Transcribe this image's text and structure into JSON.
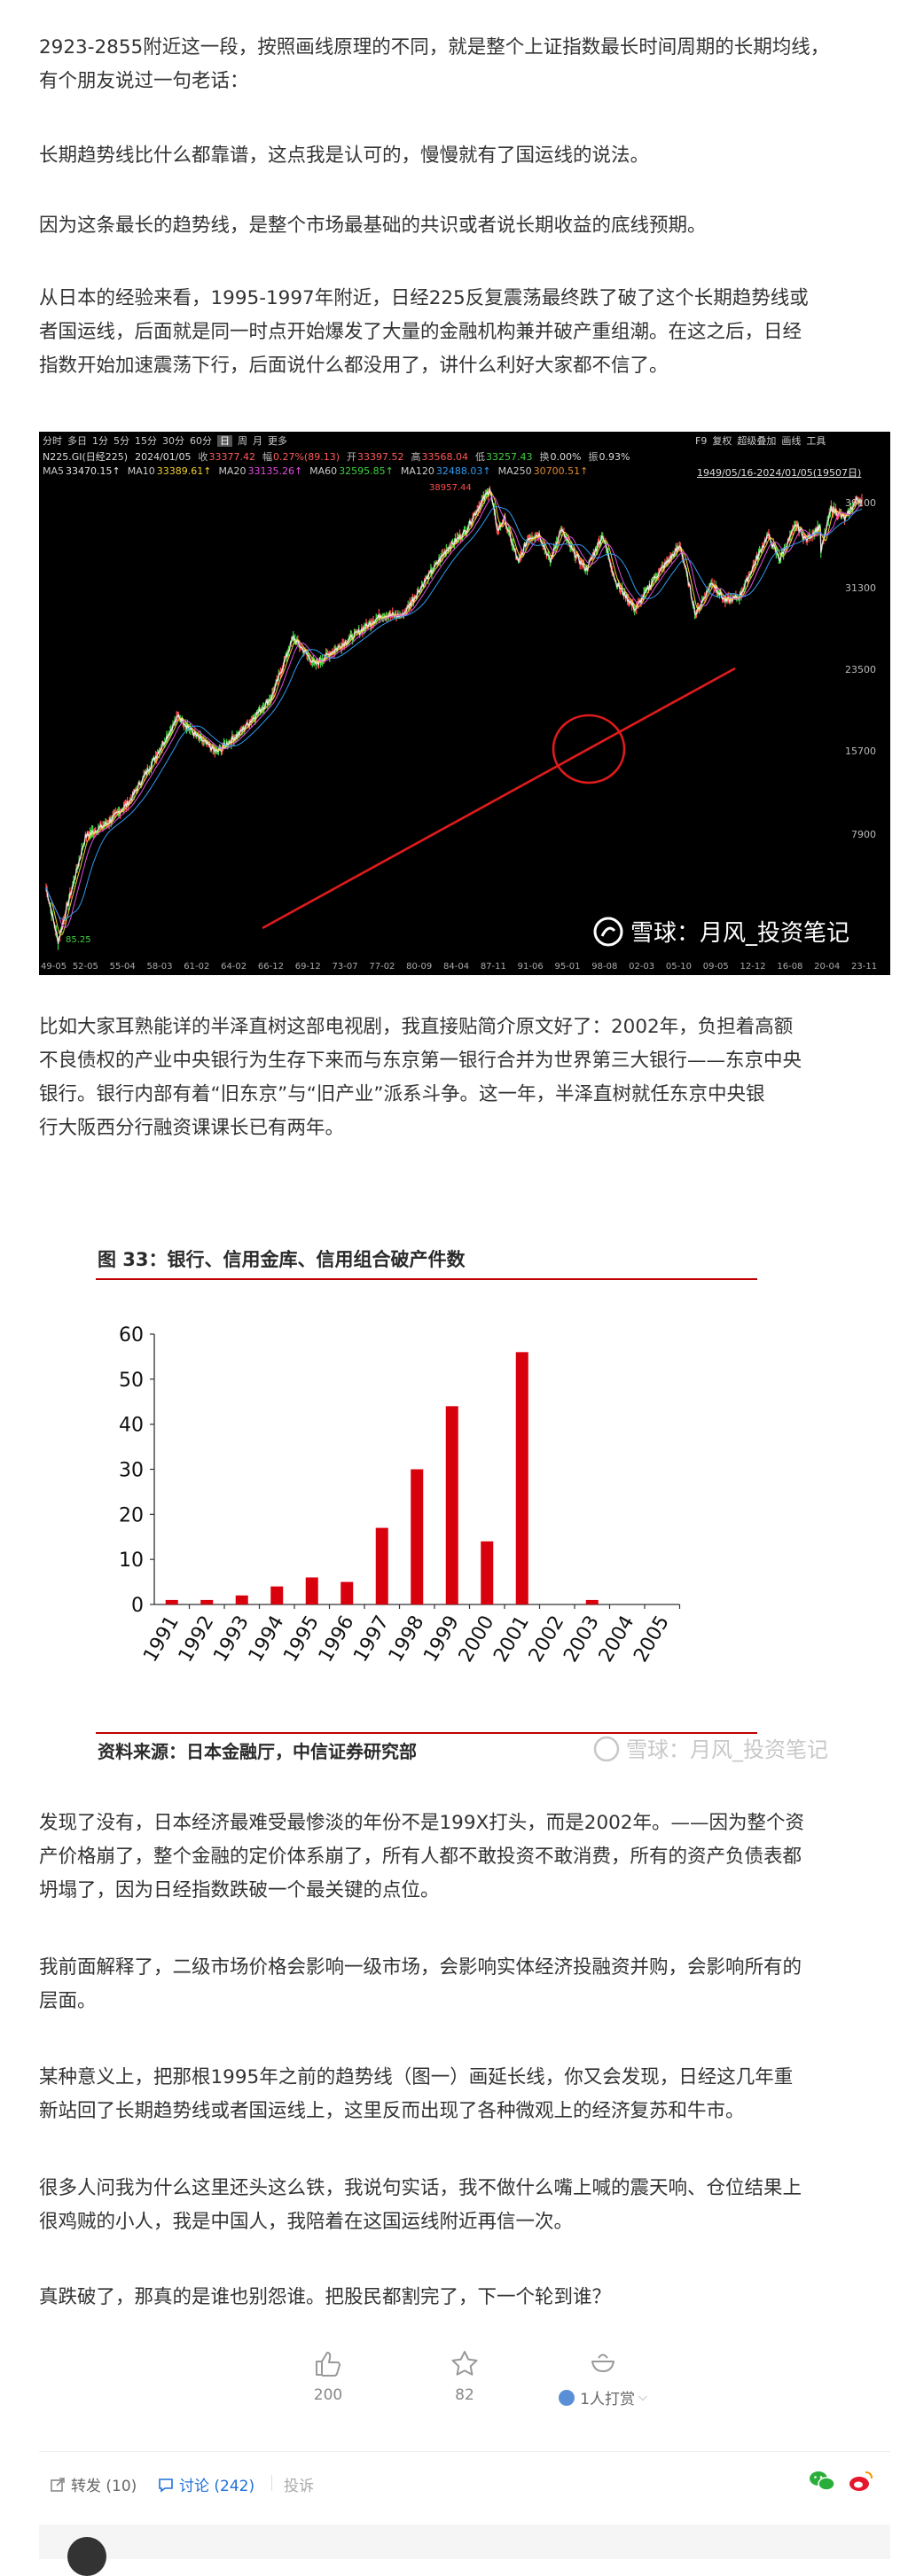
{
  "paragraphs": [
    {
      "lines": [
        "2923-2855附近这一段，按照画线原理的不同，就是整个上证指数最长时间周期的长期均线，",
        "有个朋友说过一句老话："
      ]
    },
    {
      "lines": [
        "长期趋势线比什么都靠谱，这点我是认可的，慢慢就有了国运线的说法。"
      ]
    },
    {
      "lines": [
        "因为这条最长的趋势线，是整个市场最基础的共识或者说长期收益的底线预期。"
      ]
    },
    {
      "lines": [
        "从日本的经验来看，1995-1997年附近，日经225反复震荡最终跌了破了这个长期趋势线或",
        "者国运线，后面就是同一时点开始爆发了大量的金融机构兼并破产重组潮。在这之后，日经",
        "指数开始加速震荡下行，后面说什么都没用了，讲什么利好大家都不信了。"
      ]
    },
    {
      "lines": [
        "比如大家耳熟能详的半泽直树这部电视剧，我直接贴简介原文好了：2002年，负担着高额",
        "不良债权的产业中央银行为生存下来而与东京第一银行合并为世界第三大银行——东京中央",
        "银行。银行内部有着“旧东京”与“旧产业”派系斗争。这一年，半泽直树就任东京中央银",
        "行大阪西分行融资课课长已有两年。"
      ]
    },
    {
      "lines": [
        "发现了没有，日本经济最难受最惨淡的年份不是199X打头，而是2002年。——因为整个资",
        "产价格崩了，整个金融的定价体系崩了，所有人都不敢投资不敢消费，所有的资产负债表都",
        "坍塌了，因为日经指数跌破一个最关键的点位。"
      ]
    },
    {
      "lines": [
        "我前面解释了，二级市场价格会影响一级市场，会影响实体经济投融资并购，会影响所有的",
        "层面。"
      ]
    },
    {
      "lines": [
        "某种意义上，把那根1995年之前的趋势线（图一）画延长线，你又会发现，日经这几年重",
        "新站回了长期趋势线或者国运线上，这里反而出现了各种微观上的经济复苏和牛市。"
      ]
    },
    {
      "lines": [
        "很多人问我为什么这里还头这么铁，我说句实话，我不做什么嘴上喊的震天响、仓位结果上",
        "很鸡贼的小人，我是中国人，我陪着在这国运线附近再信一次。"
      ]
    },
    {
      "lines": [
        "真跌破了，那真的是谁也别怨谁。把股民都割完了，下一个轮到谁？"
      ]
    }
  ],
  "stock_chart": {
    "tabs": [
      "分时",
      "多日",
      "1分",
      "5分",
      "15分",
      "30分",
      "60分",
      "日",
      "周",
      "月",
      "更多"
    ],
    "selected_tab": "日",
    "right_tools": [
      "F9",
      "复权",
      "超级叠加",
      "画线",
      "工具"
    ],
    "info_row": {
      "symbol": "N225.GI(日经225)",
      "date": "2024/01/05",
      "close_label": "收",
      "close": "33377.42",
      "change_label": "幅",
      "change": "0.27%(89.13)",
      "open_label": "开",
      "open": "33397.52",
      "high_label": "高",
      "high": "33568.04",
      "low_label": "低",
      "low": "33257.43",
      "turnover_label": "换",
      "turnover": "0.00%",
      "amplitude_label": "振",
      "amplitude": "0.93%"
    },
    "ma_row": [
      {
        "label": "MA5",
        "value": "33470.15↑",
        "color": "#e6e6e6"
      },
      {
        "label": "MA10",
        "value": "33389.61↑",
        "color": "#f2d22b"
      },
      {
        "label": "MA20",
        "value": "33135.26↑",
        "color": "#e04ce0"
      },
      {
        "label": "MA60",
        "value": "32595.85↑",
        "color": "#3fd13f"
      },
      {
        "label": "MA120",
        "value": "32488.03↑",
        "color": "#2f9bf2"
      },
      {
        "label": "MA250",
        "value": "30700.51↑",
        "color": "#e08a30"
      }
    ],
    "range_label": "1949/05/16-2024/01/05(19507日)",
    "y_ticks": [
      "39100",
      "31300",
      "23500",
      "15700",
      "7900"
    ],
    "x_ticks": [
      "49-05",
      "52-05",
      "55-04",
      "58-03",
      "61-02",
      "64-02",
      "66-12",
      "69-12",
      "73-07",
      "77-02",
      "80-09",
      "84-04",
      "87-11",
      "91-06",
      "95-01",
      "98-08",
      "02-03",
      "05-10",
      "09-05",
      "12-12",
      "16-08",
      "20-04",
      "23-11"
    ],
    "peak_label": "38957.44",
    "low_label": "85.25",
    "watermark": "雪球：月风_投资笔记",
    "trend_line_color": "#e01b1b"
  },
  "chart_data": {
    "type": "bar",
    "title": "图 33：银行、信用金库、信用组合破产件数",
    "source": "资料来源：日本金融厅，中信证券研究部",
    "watermark": "雪球：月风_投资笔记",
    "categories": [
      "1991",
      "1992",
      "1993",
      "1994",
      "1995",
      "1996",
      "1997",
      "1998",
      "1999",
      "2000",
      "2001",
      "2002",
      "2003",
      "2004",
      "2005"
    ],
    "values": [
      1,
      1,
      2,
      4,
      6,
      5,
      17,
      30,
      44,
      14,
      56,
      0,
      1,
      0,
      0
    ],
    "ylim": [
      0,
      60
    ],
    "yticks": [
      0,
      10,
      20,
      30,
      40,
      50,
      60
    ],
    "bar_color": "#d9000d",
    "rule_color": "#c00000"
  },
  "actions": {
    "like_count": "200",
    "favorite_count": "82",
    "reward_label": "1人打赏"
  },
  "footer": {
    "repost": "转发 (10)",
    "discuss": "讨论 (242)",
    "report": "投诉"
  }
}
